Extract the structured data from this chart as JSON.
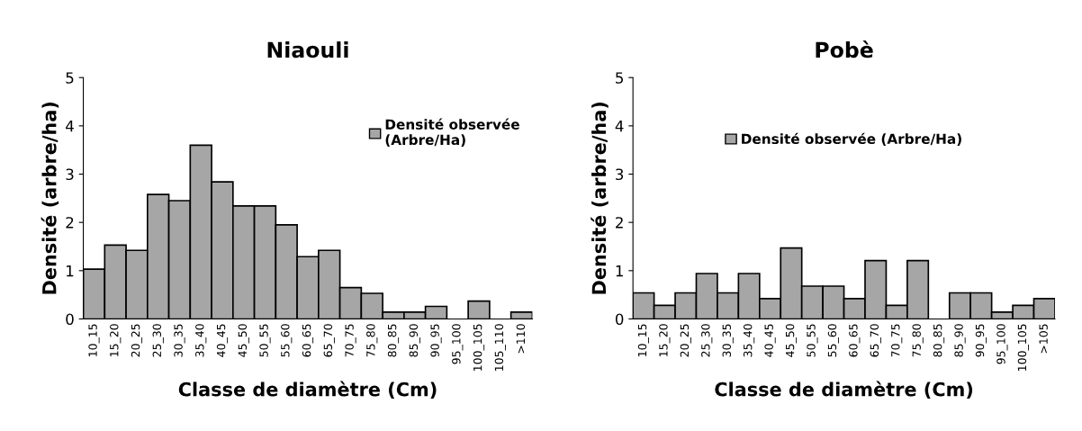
{
  "chart_data": [
    {
      "type": "bar",
      "title": "Niaouli",
      "xlabel": "Classe de diamètre (Cm)",
      "ylabel": "Densité (arbre/ha)",
      "categories": [
        "10_15",
        "15_20",
        "20_25",
        "25_30",
        "30_35",
        "35_40",
        "40_45",
        "45_50",
        "50_55",
        "55_60",
        "60_65",
        "65_70",
        "70_75",
        "75_80",
        "80_85",
        "85_90",
        "90_95",
        "95_100",
        "100_105",
        "105_110",
        ">110"
      ],
      "series": [
        {
          "name": "Densité observée\n(Arbre/Ha)",
          "color": "#a6a6a6",
          "values": [
            1.03,
            1.53,
            1.42,
            2.58,
            2.45,
            3.6,
            2.84,
            2.34,
            2.34,
            1.95,
            1.29,
            1.42,
            0.65,
            0.53,
            0.14,
            0.14,
            0.26,
            0,
            0.37,
            0,
            0.14
          ]
        }
      ],
      "ylim": [
        0,
        5
      ],
      "yticks": [
        0,
        1,
        2,
        3,
        4,
        5
      ],
      "grid": false,
      "legend": "top right"
    },
    {
      "type": "bar",
      "title": "Pobè",
      "xlabel": "Classe de diamètre (Cm)",
      "ylabel": "Densité (arbre/ha)",
      "categories": [
        "10_15",
        "15_20",
        "20_25",
        "25_30",
        "30_35",
        "35_40",
        "40_45",
        "45_50",
        "50_55",
        "55_60",
        "60_65",
        "65_70",
        "70_75",
        "75_80",
        "80_85",
        "85_90",
        "90_95",
        "95_100",
        "100_105",
        ">105"
      ],
      "series": [
        {
          "name": "Densité observée (Arbre/Ha)",
          "color": "#a6a6a6",
          "values": [
            0.54,
            0.28,
            0.54,
            0.94,
            0.54,
            0.94,
            0.42,
            1.47,
            0.68,
            0.68,
            0.42,
            1.21,
            0.28,
            1.21,
            0,
            0.54,
            0.54,
            0.14,
            0.28,
            0.42
          ]
        }
      ],
      "ylim": [
        0,
        5
      ],
      "yticks": [
        0,
        1,
        2,
        3,
        4,
        5
      ],
      "grid": false,
      "legend": "top"
    }
  ]
}
